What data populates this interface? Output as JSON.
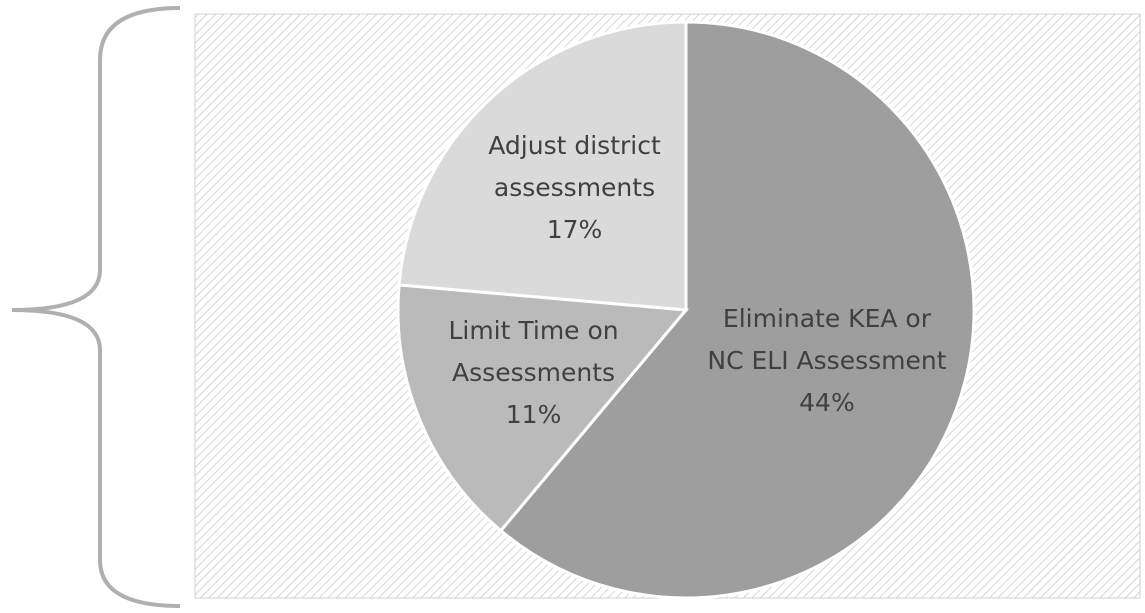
{
  "chart_data": {
    "type": "pie",
    "categories": [
      "Eliminate KEA or\nNC ELI Assessment",
      "Limit Time on\nAssessments",
      "Adjust district\nassessments"
    ],
    "values": [
      44,
      11,
      17
    ],
    "value_labels": [
      "44%",
      "11%",
      "17%"
    ],
    "colors": [
      "#9e9e9e",
      "#bababa",
      "#dadada"
    ]
  }
}
